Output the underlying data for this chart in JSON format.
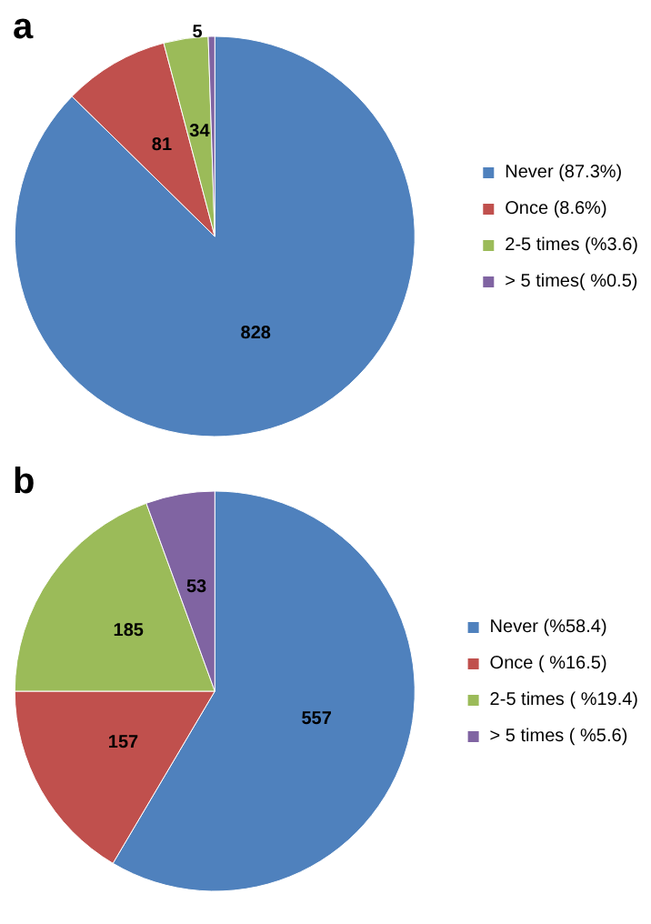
{
  "chart_data": [
    {
      "type": "pie",
      "title": "a",
      "categories": [
        "Never (87.3%)",
        "Once (8.6%)",
        "2-5 times (%3.6)",
        "> 5 times( %0.5)"
      ],
      "values": [
        828,
        81,
        34,
        5
      ],
      "colors": [
        "#4f81bd",
        "#c0504d",
        "#9bbb59",
        "#8064a2"
      ],
      "data_labels": true,
      "legend": "right"
    },
    {
      "type": "pie",
      "title": "b",
      "categories": [
        "Never (%58.4)",
        "Once ( %16.5)",
        "2-5 times ( %19.4)",
        "> 5 times ( %5.6)"
      ],
      "values": [
        557,
        157,
        185,
        53
      ],
      "colors": [
        "#4f81bd",
        "#c0504d",
        "#9bbb59",
        "#8064a2"
      ],
      "data_labels": true,
      "legend": "right"
    }
  ]
}
